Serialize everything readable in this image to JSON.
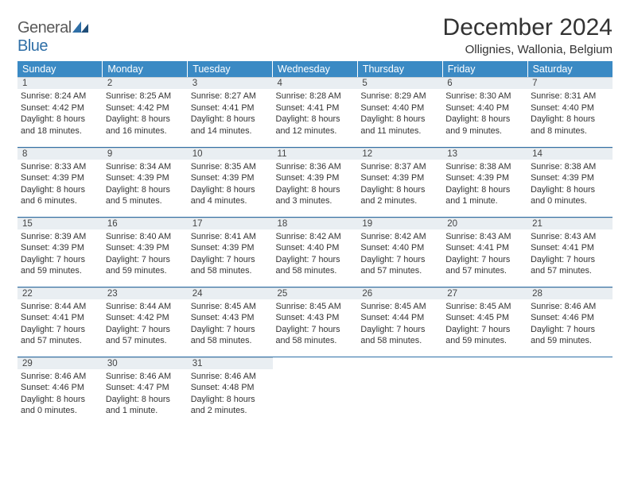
{
  "brand": {
    "word1": "General",
    "word2": "Blue"
  },
  "title": "December 2024",
  "location": "Ollignies, Wallonia, Belgium",
  "header_bg": "#3b8ac4",
  "daynum_bg": "#e9eef2",
  "rule_color": "#2f6fa7",
  "columns": [
    "Sunday",
    "Monday",
    "Tuesday",
    "Wednesday",
    "Thursday",
    "Friday",
    "Saturday"
  ],
  "weeks": [
    [
      {
        "n": "1",
        "sr": "8:24 AM",
        "ss": "4:42 PM",
        "dl": "8 hours and 18 minutes."
      },
      {
        "n": "2",
        "sr": "8:25 AM",
        "ss": "4:42 PM",
        "dl": "8 hours and 16 minutes."
      },
      {
        "n": "3",
        "sr": "8:27 AM",
        "ss": "4:41 PM",
        "dl": "8 hours and 14 minutes."
      },
      {
        "n": "4",
        "sr": "8:28 AM",
        "ss": "4:41 PM",
        "dl": "8 hours and 12 minutes."
      },
      {
        "n": "5",
        "sr": "8:29 AM",
        "ss": "4:40 PM",
        "dl": "8 hours and 11 minutes."
      },
      {
        "n": "6",
        "sr": "8:30 AM",
        "ss": "4:40 PM",
        "dl": "8 hours and 9 minutes."
      },
      {
        "n": "7",
        "sr": "8:31 AM",
        "ss": "4:40 PM",
        "dl": "8 hours and 8 minutes."
      }
    ],
    [
      {
        "n": "8",
        "sr": "8:33 AM",
        "ss": "4:39 PM",
        "dl": "8 hours and 6 minutes."
      },
      {
        "n": "9",
        "sr": "8:34 AM",
        "ss": "4:39 PM",
        "dl": "8 hours and 5 minutes."
      },
      {
        "n": "10",
        "sr": "8:35 AM",
        "ss": "4:39 PM",
        "dl": "8 hours and 4 minutes."
      },
      {
        "n": "11",
        "sr": "8:36 AM",
        "ss": "4:39 PM",
        "dl": "8 hours and 3 minutes."
      },
      {
        "n": "12",
        "sr": "8:37 AM",
        "ss": "4:39 PM",
        "dl": "8 hours and 2 minutes."
      },
      {
        "n": "13",
        "sr": "8:38 AM",
        "ss": "4:39 PM",
        "dl": "8 hours and 1 minute."
      },
      {
        "n": "14",
        "sr": "8:38 AM",
        "ss": "4:39 PM",
        "dl": "8 hours and 0 minutes."
      }
    ],
    [
      {
        "n": "15",
        "sr": "8:39 AM",
        "ss": "4:39 PM",
        "dl": "7 hours and 59 minutes."
      },
      {
        "n": "16",
        "sr": "8:40 AM",
        "ss": "4:39 PM",
        "dl": "7 hours and 59 minutes."
      },
      {
        "n": "17",
        "sr": "8:41 AM",
        "ss": "4:39 PM",
        "dl": "7 hours and 58 minutes."
      },
      {
        "n": "18",
        "sr": "8:42 AM",
        "ss": "4:40 PM",
        "dl": "7 hours and 58 minutes."
      },
      {
        "n": "19",
        "sr": "8:42 AM",
        "ss": "4:40 PM",
        "dl": "7 hours and 57 minutes."
      },
      {
        "n": "20",
        "sr": "8:43 AM",
        "ss": "4:41 PM",
        "dl": "7 hours and 57 minutes."
      },
      {
        "n": "21",
        "sr": "8:43 AM",
        "ss": "4:41 PM",
        "dl": "7 hours and 57 minutes."
      }
    ],
    [
      {
        "n": "22",
        "sr": "8:44 AM",
        "ss": "4:41 PM",
        "dl": "7 hours and 57 minutes."
      },
      {
        "n": "23",
        "sr": "8:44 AM",
        "ss": "4:42 PM",
        "dl": "7 hours and 57 minutes."
      },
      {
        "n": "24",
        "sr": "8:45 AM",
        "ss": "4:43 PM",
        "dl": "7 hours and 58 minutes."
      },
      {
        "n": "25",
        "sr": "8:45 AM",
        "ss": "4:43 PM",
        "dl": "7 hours and 58 minutes."
      },
      {
        "n": "26",
        "sr": "8:45 AM",
        "ss": "4:44 PM",
        "dl": "7 hours and 58 minutes."
      },
      {
        "n": "27",
        "sr": "8:45 AM",
        "ss": "4:45 PM",
        "dl": "7 hours and 59 minutes."
      },
      {
        "n": "28",
        "sr": "8:46 AM",
        "ss": "4:46 PM",
        "dl": "7 hours and 59 minutes."
      }
    ],
    [
      {
        "n": "29",
        "sr": "8:46 AM",
        "ss": "4:46 PM",
        "dl": "8 hours and 0 minutes."
      },
      {
        "n": "30",
        "sr": "8:46 AM",
        "ss": "4:47 PM",
        "dl": "8 hours and 1 minute."
      },
      {
        "n": "31",
        "sr": "8:46 AM",
        "ss": "4:48 PM",
        "dl": "8 hours and 2 minutes."
      },
      {
        "empty": true
      },
      {
        "empty": true
      },
      {
        "empty": true
      },
      {
        "empty": true
      }
    ]
  ],
  "labels": {
    "sunrise": "Sunrise:",
    "sunset": "Sunset:",
    "daylight": "Daylight:"
  }
}
